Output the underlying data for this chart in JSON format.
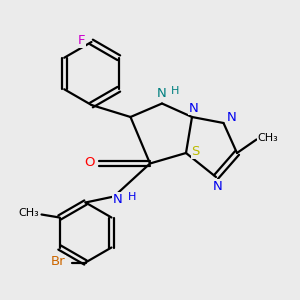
{
  "background_color": "#ebebeb",
  "atom_colors": {
    "F": "#cc00cc",
    "N_blue": "#0000ee",
    "NH_teal": "#008080",
    "O": "#ff0000",
    "S": "#bbbb00",
    "Br": "#cc6600",
    "N_amide": "#0000ee",
    "C": "#000000"
  },
  "lw": 1.6,
  "fs_large": 9.5,
  "fs_small": 8.0,
  "figsize": [
    3.0,
    3.0
  ],
  "dpi": 100,
  "xlim": [
    0,
    10
  ],
  "ylim": [
    0,
    10
  ]
}
